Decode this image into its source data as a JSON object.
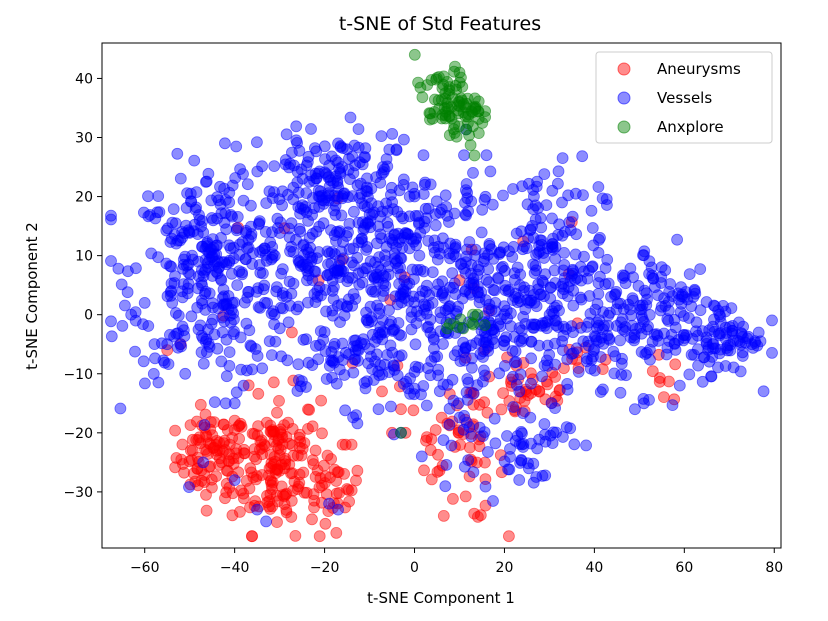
{
  "chart_data": {
    "type": "scatter",
    "title": "t-SNE of Std Features",
    "xlabel": "t-SNE Component 1",
    "ylabel": "t-SNE Component 2",
    "xlim": [
      -69.5,
      81.5
    ],
    "ylim": [
      -39.5,
      46.0
    ],
    "xticks": [
      -60,
      -40,
      -20,
      0,
      20,
      40,
      60,
      80
    ],
    "yticks": [
      -30,
      -20,
      -10,
      0,
      10,
      20,
      30,
      40
    ],
    "xtick_labels": [
      "−60",
      "−40",
      "−20",
      "0",
      "20",
      "40",
      "60",
      "80"
    ],
    "ytick_labels": [
      "−30",
      "−20",
      "−10",
      "0",
      "10",
      "20",
      "30",
      "40"
    ],
    "grid": false,
    "legend_position": "top-right",
    "marker_alpha": 0.45,
    "series": [
      {
        "name": "Aneurysms",
        "color": "#ff0000",
        "clusters": [
          {
            "cx": -45,
            "cy": -24,
            "sx": 4,
            "sy": 3.5,
            "n": 90
          },
          {
            "cx": -31,
            "cy": -25,
            "sx": 5,
            "sy": 6,
            "n": 150
          },
          {
            "cx": -18,
            "cy": -29,
            "sx": 3,
            "sy": 3,
            "n": 35
          },
          {
            "cx": 5,
            "cy": -20,
            "sx": 3,
            "sy": 3,
            "n": 15
          },
          {
            "cx": 12,
            "cy": -25,
            "sx": 4,
            "sy": 5,
            "n": 35
          },
          {
            "cx": 25,
            "cy": -13,
            "sx": 6,
            "sy": 3,
            "n": 40
          },
          {
            "cx": 38,
            "cy": -8,
            "sx": 4,
            "sy": 2,
            "n": 10
          },
          {
            "cx": 55,
            "cy": -11,
            "sx": 3,
            "sy": 2,
            "n": 8
          },
          {
            "cx": -5,
            "cy": -3,
            "sx": 25,
            "sy": 12,
            "n": 25
          }
        ],
        "points": [
          [
            -55,
            -6
          ],
          [
            -52,
            -5
          ],
          [
            -3,
            -16
          ],
          [
            -5,
            -20
          ],
          [
            -2,
            -20
          ],
          [
            -14,
            -22
          ],
          [
            -16,
            -22
          ],
          [
            -22,
            -23
          ]
        ]
      },
      {
        "name": "Vessels",
        "color": "#0000ff",
        "clusters": [
          {
            "cx": -45,
            "cy": 7,
            "sx": 9,
            "sy": 9,
            "n": 320
          },
          {
            "cx": -20,
            "cy": 10,
            "sx": 9,
            "sy": 10,
            "n": 260
          },
          {
            "cx": 0,
            "cy": 8,
            "sx": 10,
            "sy": 9,
            "n": 260
          },
          {
            "cx": 15,
            "cy": -2,
            "sx": 8,
            "sy": 8,
            "n": 160
          },
          {
            "cx": 28,
            "cy": 10,
            "sx": 7,
            "sy": 8,
            "n": 140
          },
          {
            "cx": 35,
            "cy": -2,
            "sx": 8,
            "sy": 6,
            "n": 110
          },
          {
            "cx": 55,
            "cy": 0,
            "sx": 8,
            "sy": 6,
            "n": 150
          },
          {
            "cx": 70,
            "cy": -4,
            "sx": 4,
            "sy": 3,
            "n": 60
          },
          {
            "cx": -20,
            "cy": 24,
            "sx": 6,
            "sy": 3,
            "n": 60
          },
          {
            "cx": 25,
            "cy": -22,
            "sx": 5,
            "sy": 4,
            "n": 45
          },
          {
            "cx": 10,
            "cy": -20,
            "sx": 3,
            "sy": 3,
            "n": 20
          },
          {
            "cx": -10,
            "cy": -8,
            "sx": 8,
            "sy": 3,
            "n": 60
          }
        ],
        "points": [
          [
            -35,
            -33
          ],
          [
            -33,
            -35
          ],
          [
            -19,
            -32
          ],
          [
            -17,
            -33
          ],
          [
            -47,
            -25
          ],
          [
            -40,
            -28
          ],
          [
            -42,
            -15
          ],
          [
            -40,
            -15
          ],
          [
            -38,
            -12
          ],
          [
            -51,
            -10
          ],
          [
            -55,
            -5
          ],
          [
            -62,
            -1
          ],
          [
            -63,
            0
          ],
          [
            -60,
            2
          ],
          [
            -13,
            -17
          ],
          [
            -8,
            -16
          ],
          [
            -3,
            -20
          ],
          [
            13,
            24
          ],
          [
            11,
            27
          ],
          [
            16,
            27
          ],
          [
            2,
            27
          ],
          [
            -4,
            28
          ],
          [
            -7,
            25
          ],
          [
            -15,
            28
          ],
          [
            -17,
            29
          ],
          [
            75,
            -5
          ],
          [
            73,
            -7
          ],
          [
            74,
            -4
          ],
          [
            51,
            -15
          ],
          [
            49,
            -16
          ],
          [
            59,
            -12
          ],
          [
            62,
            3
          ],
          [
            60,
            3
          ]
        ]
      },
      {
        "name": "Anxplore",
        "color": "#008000",
        "clusters": [
          {
            "cx": 7,
            "cy": 36,
            "sx": 3.5,
            "sy": 2.5,
            "n": 70
          },
          {
            "cx": 13,
            "cy": 32,
            "sx": 2,
            "sy": 2,
            "n": 20
          },
          {
            "cx": 10,
            "cy": -1.5,
            "sx": 2,
            "sy": 0.6,
            "n": 8
          }
        ],
        "points": [
          [
            13,
            0
          ],
          [
            14,
            0
          ],
          [
            -3,
            -20
          ],
          [
            9,
            42
          ],
          [
            10,
            41
          ]
        ]
      }
    ]
  }
}
